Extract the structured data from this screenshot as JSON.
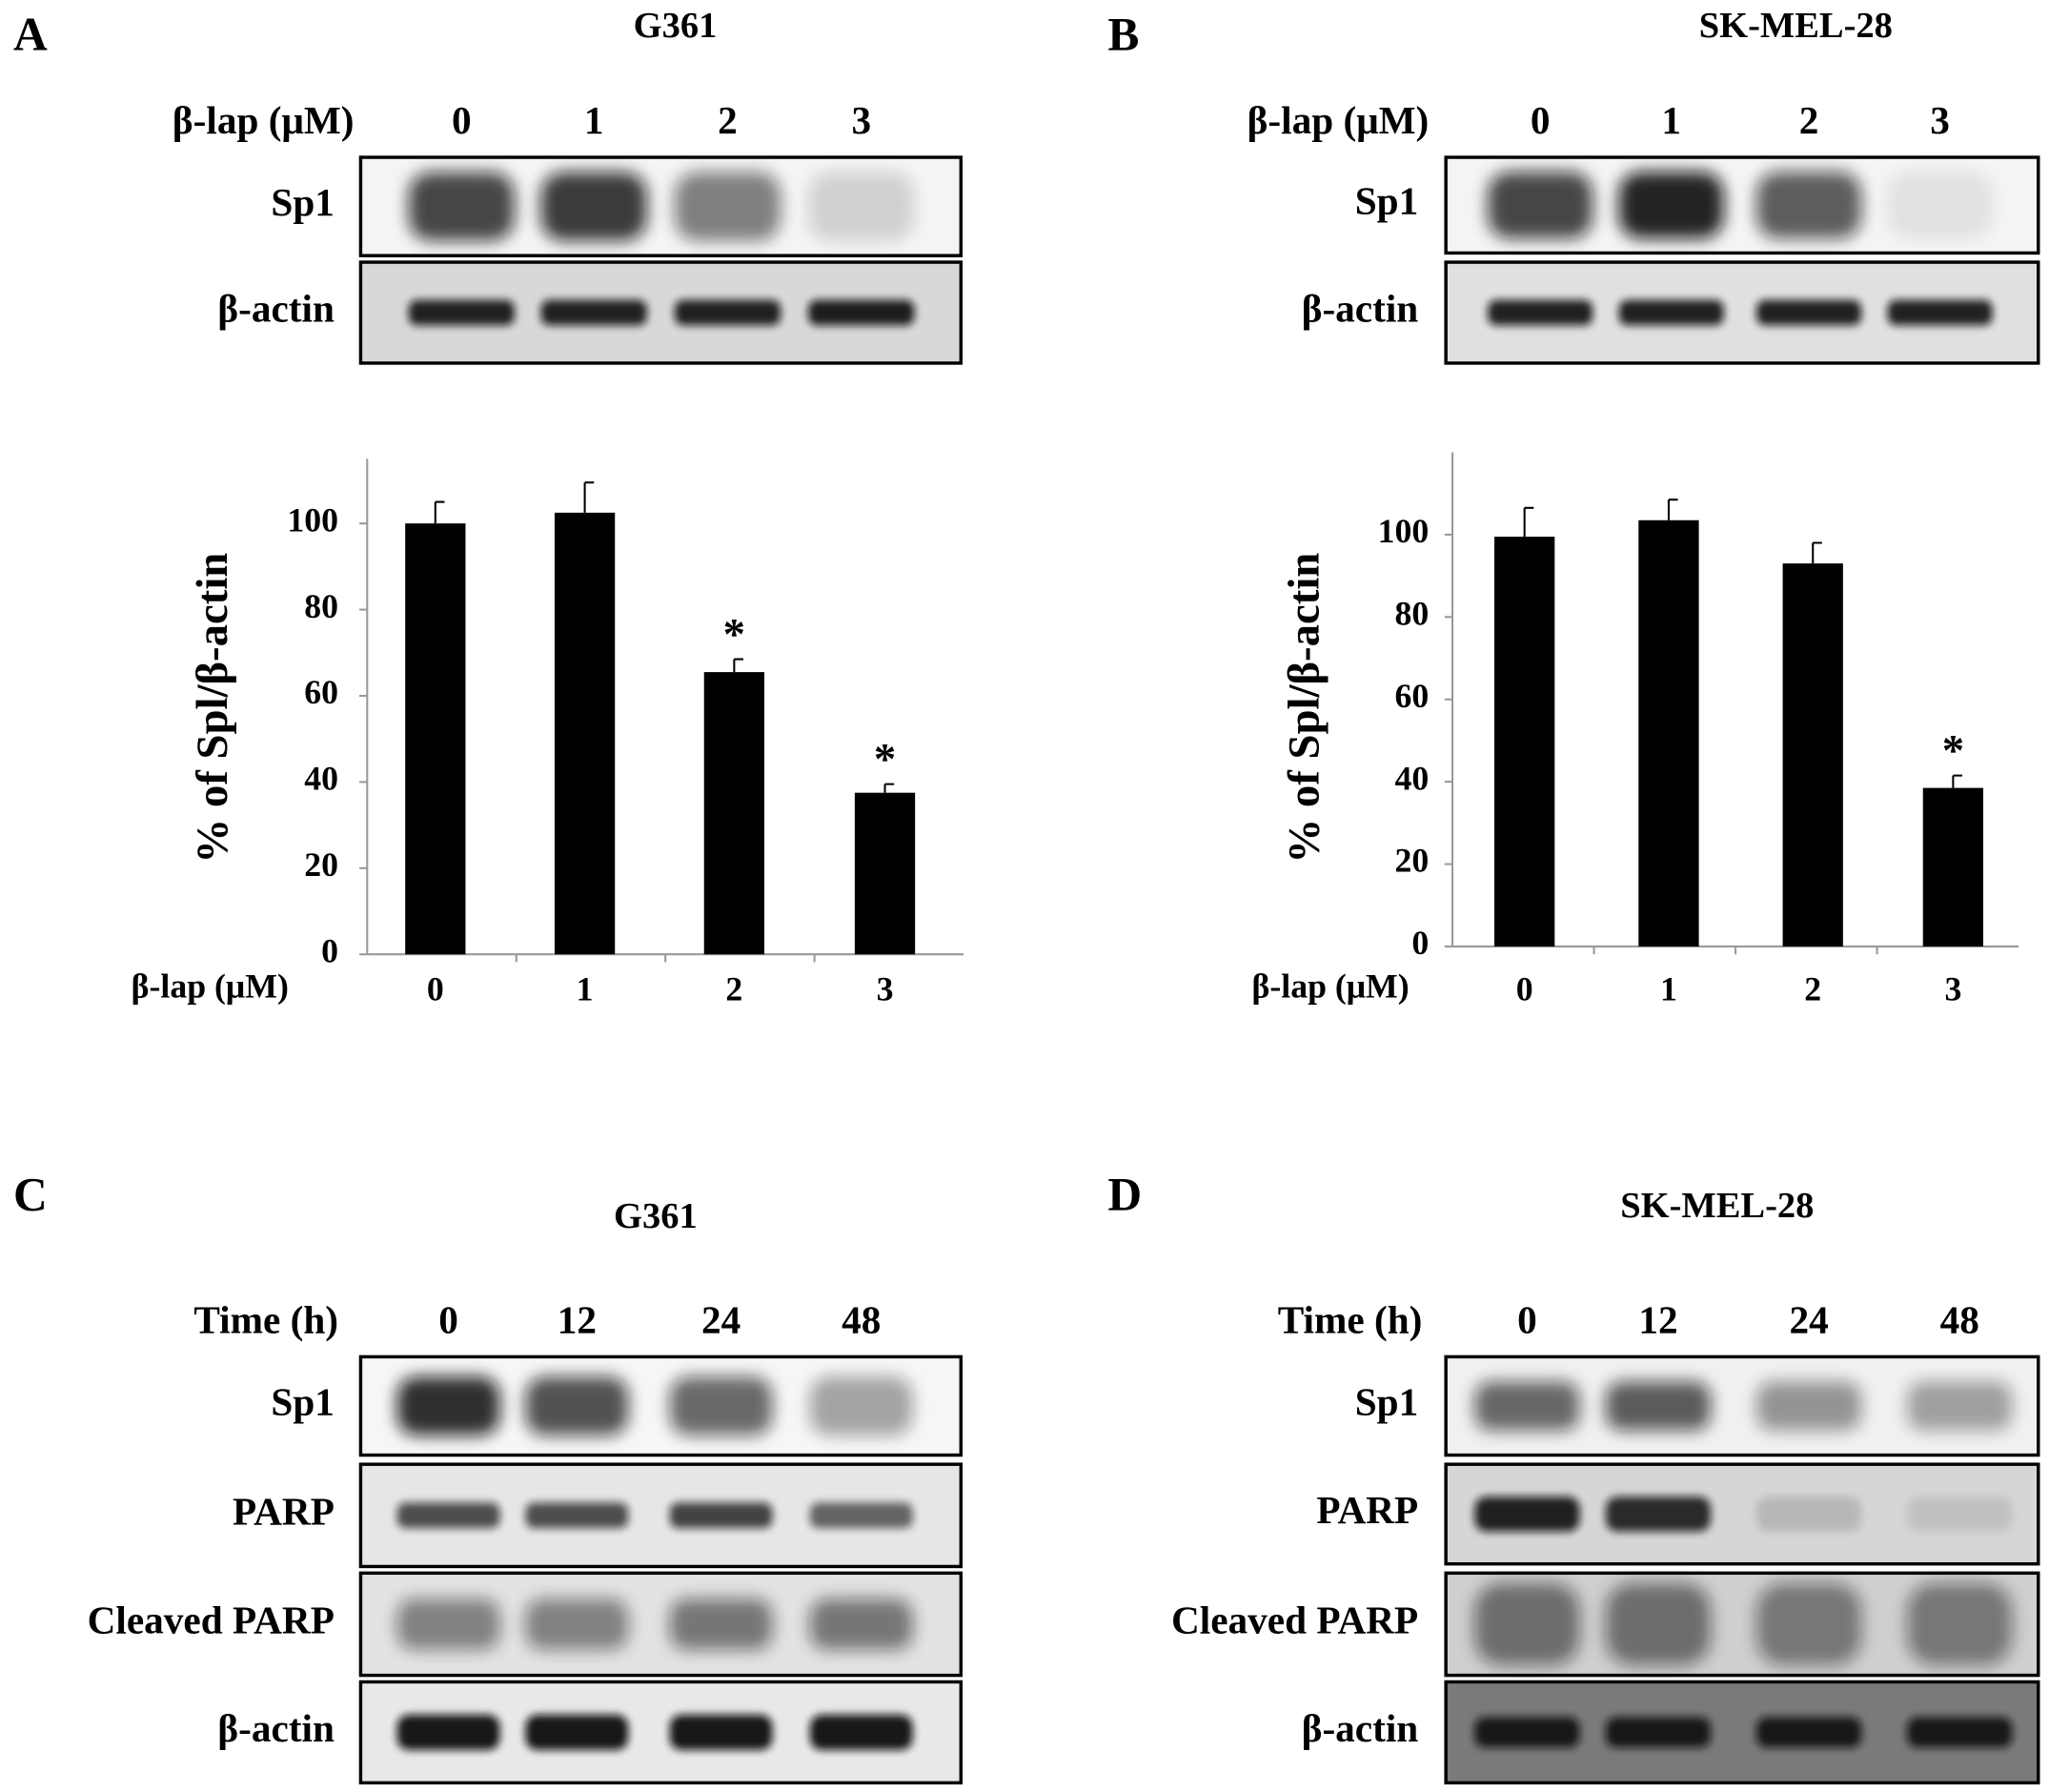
{
  "panels": [
    {
      "letter": "A",
      "cell_line": "G361",
      "lane_header": "β-lap (μM)",
      "lanes": [
        "0",
        "1",
        "2",
        "3"
      ],
      "rows": [
        "Sp1",
        "β-actin"
      ]
    },
    {
      "letter": "B",
      "cell_line": "SK-MEL-28",
      "lane_header": "β-lap (μM)",
      "lanes": [
        "0",
        "1",
        "2",
        "3"
      ],
      "rows": [
        "Sp1",
        "β-actin"
      ]
    },
    {
      "letter": "C",
      "cell_line": "G361",
      "lane_header": "Time (h)",
      "lanes": [
        "0",
        "12",
        "24",
        "48"
      ],
      "rows": [
        "Sp1",
        "PARP",
        "Cleaved PARP",
        "β-actin"
      ]
    },
    {
      "letter": "D",
      "cell_line": "SK-MEL-28",
      "lane_header": "Time (h)",
      "lanes": [
        "0",
        "12",
        "24",
        "48"
      ],
      "rows": [
        "Sp1",
        "PARP",
        "Cleaved PARP",
        "β-actin"
      ]
    }
  ],
  "chart_data": [
    {
      "type": "bar",
      "xlabel": "β-lap (μM)",
      "ylabel": "% of Spl/β-actin",
      "categories": [
        "0",
        "1",
        "2",
        "3"
      ],
      "values": [
        100,
        102.5,
        65.5,
        37.5
      ],
      "errors": [
        5,
        7,
        3,
        2
      ],
      "significance": [
        null,
        null,
        "*",
        "*"
      ],
      "color": "#000000",
      "ylim": [
        0,
        115
      ],
      "yticks": [
        0,
        20,
        40,
        60,
        80,
        100
      ]
    },
    {
      "type": "bar",
      "xlabel": "β-lap (μM)",
      "ylabel": "% of Spl/β-actin",
      "categories": [
        "0",
        "1",
        "2",
        "3"
      ],
      "values": [
        99.5,
        103.5,
        93,
        38.5
      ],
      "errors": [
        7,
        5,
        5,
        3
      ],
      "significance": [
        null,
        null,
        null,
        "*"
      ],
      "color": "#000000",
      "ylim": [
        0,
        120
      ],
      "yticks": [
        0,
        20,
        40,
        60,
        80,
        100
      ]
    }
  ]
}
